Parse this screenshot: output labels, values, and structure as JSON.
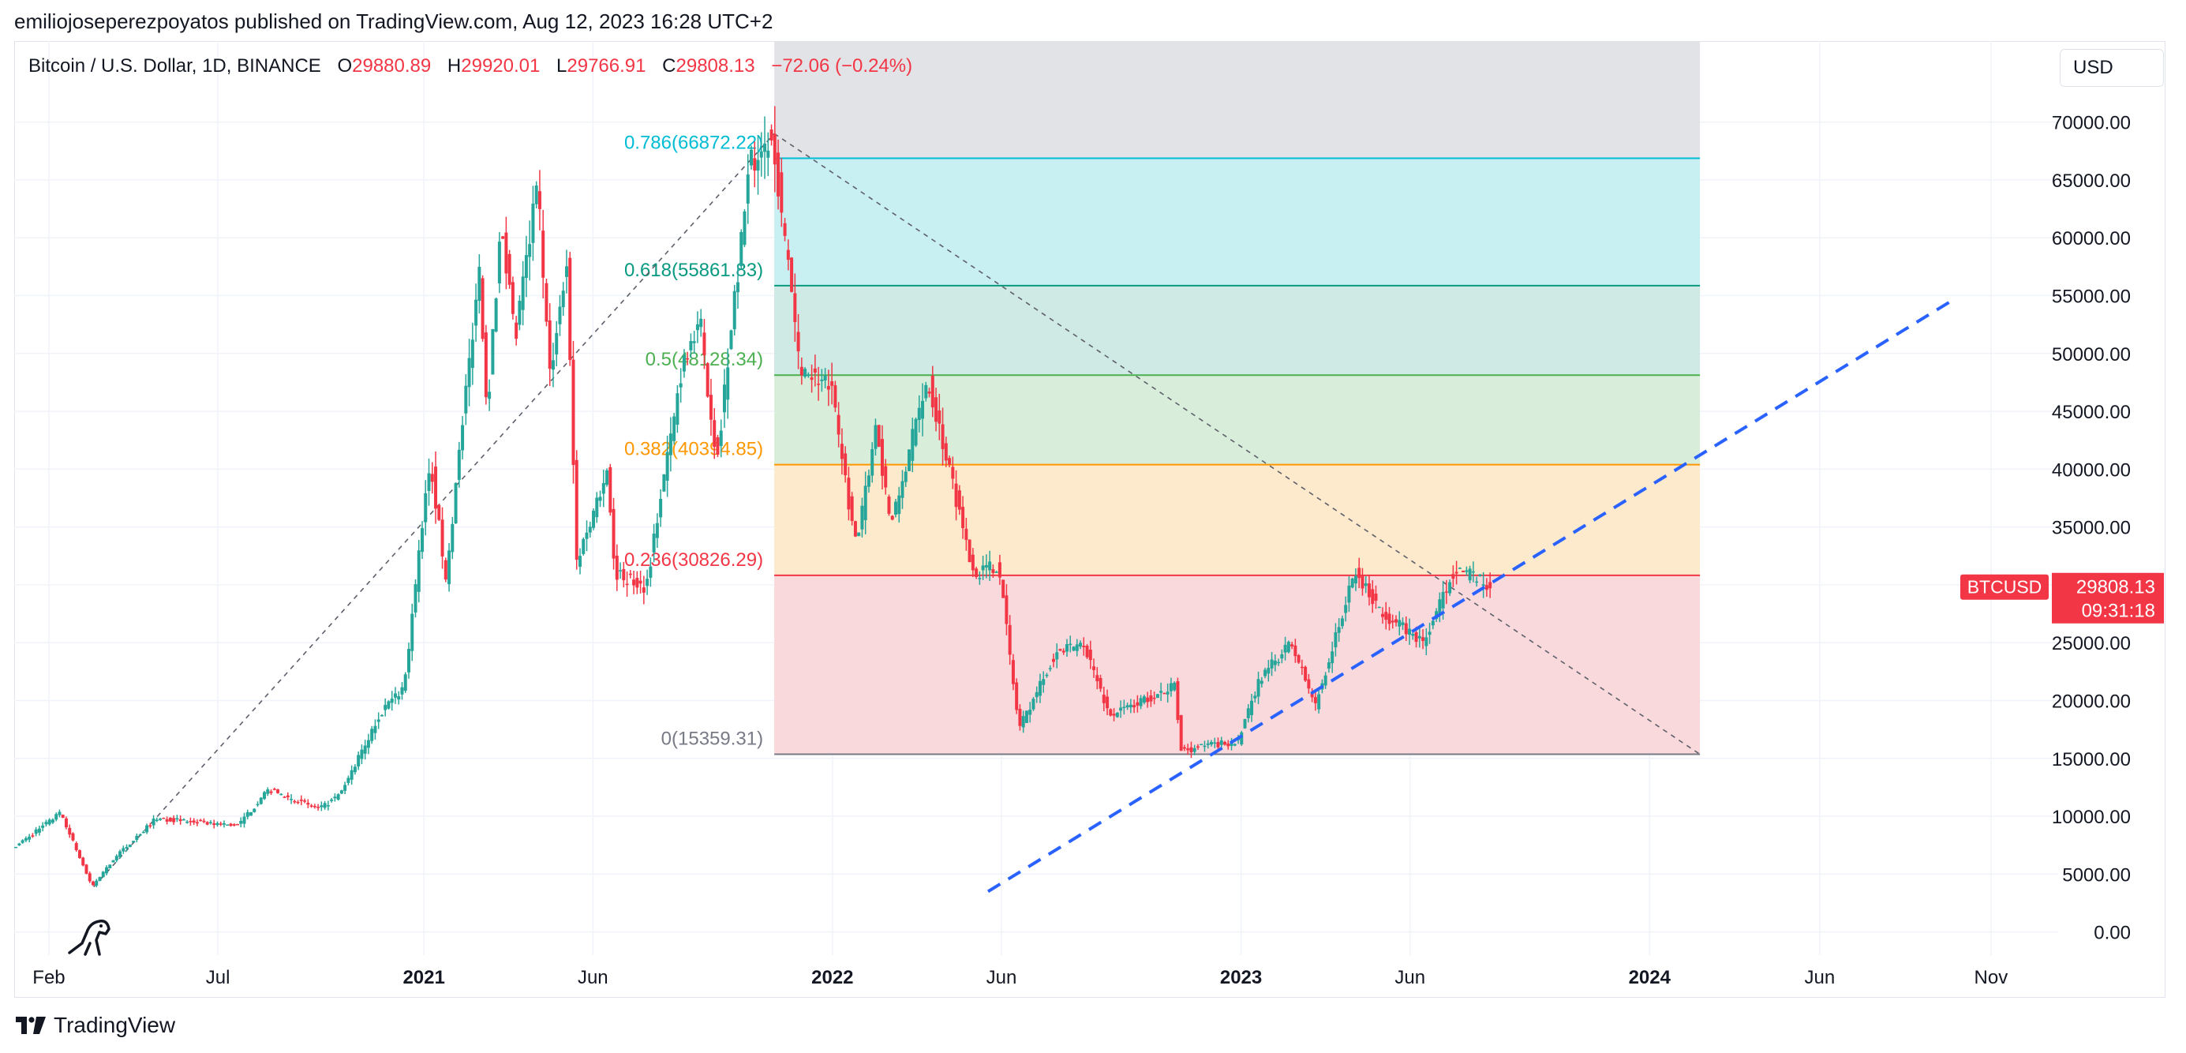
{
  "header": {
    "publisher_line": "emiliojoseperezpoyatos published on TradingView.com, Aug 12, 2023 16:28 UTC+2"
  },
  "legend": {
    "symbol": "Bitcoin / U.S. Dollar, 1D, BINANCE",
    "open_key": "O",
    "open": "29880.89",
    "high_key": "H",
    "high": "29920.01",
    "low_key": "L",
    "low": "29766.91",
    "close_key": "C",
    "close": "29808.13",
    "change": "−72.06 (−0.24%)"
  },
  "currency_button": "USD",
  "footer": {
    "brand": "TradingView",
    "logo_icon": "tradingview-logo-icon"
  },
  "watermark_icon": "dino-icon",
  "colors": {
    "up": "#26a69a",
    "down": "#f23645",
    "trendline": "#2962ff",
    "fib_0": "#787b86",
    "fib_0236": "#f23645",
    "fib_0382": "#ff9800",
    "fib_05": "#4caf50",
    "fib_0618": "#089981",
    "fib_0786": "#00bcd4"
  },
  "chart_data": {
    "type": "candlestick",
    "symbol": "BTCUSD",
    "x_range": [
      "2020-01-01",
      "2024-12-31"
    ],
    "y_range": [
      -2000,
      77000
    ],
    "y_ticks": [
      0,
      5000,
      10000,
      15000,
      20000,
      25000,
      30000,
      35000,
      40000,
      45000,
      50000,
      55000,
      60000,
      65000,
      70000
    ],
    "y_tick_labels": [
      "0.00",
      "5000.00",
      "10000.00",
      "15000.00",
      "20000.00",
      "25000.00",
      "30000.00",
      "35000.00",
      "40000.00",
      "45000.00",
      "50000.00",
      "55000.00",
      "60000.00",
      "65000.00",
      "70000.00"
    ],
    "x_ticks": [
      {
        "date": "2020-02-01",
        "label": "Feb",
        "bold": false
      },
      {
        "date": "2020-07-01",
        "label": "Jul",
        "bold": false
      },
      {
        "date": "2021-01-01",
        "label": "2021",
        "bold": true
      },
      {
        "date": "2021-06-01",
        "label": "Jun",
        "bold": false
      },
      {
        "date": "2022-01-01",
        "label": "2022",
        "bold": true
      },
      {
        "date": "2022-06-01",
        "label": "Jun",
        "bold": false
      },
      {
        "date": "2023-01-01",
        "label": "2023",
        "bold": true
      },
      {
        "date": "2023-06-01",
        "label": "Jun",
        "bold": false
      },
      {
        "date": "2024-01-01",
        "label": "2024",
        "bold": true
      },
      {
        "date": "2024-06-01",
        "label": "Jun",
        "bold": false
      },
      {
        "date": "2024-11-01",
        "label": "Nov",
        "bold": false
      }
    ],
    "price_path": [
      [
        "2020-01-01",
        7200
      ],
      [
        "2020-02-13",
        10300
      ],
      [
        "2020-03-12",
        3900
      ],
      [
        "2020-04-01",
        6400
      ],
      [
        "2020-05-08",
        9800
      ],
      [
        "2020-07-20",
        9200
      ],
      [
        "2020-08-17",
        12300
      ],
      [
        "2020-10-01",
        10600
      ],
      [
        "2020-10-20",
        11900
      ],
      [
        "2020-11-25",
        19000
      ],
      [
        "2020-12-16",
        21300
      ],
      [
        "2021-01-08",
        41000
      ],
      [
        "2021-01-22",
        30500
      ],
      [
        "2021-02-21",
        57500
      ],
      [
        "2021-02-28",
        45000
      ],
      [
        "2021-03-13",
        61500
      ],
      [
        "2021-03-25",
        51000
      ],
      [
        "2021-04-14",
        64800
      ],
      [
        "2021-04-25",
        48000
      ],
      [
        "2021-05-10",
        58000
      ],
      [
        "2021-05-19",
        32000
      ],
      [
        "2021-06-15",
        40000
      ],
      [
        "2021-06-22",
        31000
      ],
      [
        "2021-07-20",
        29800
      ],
      [
        "2021-08-23",
        50000
      ],
      [
        "2021-09-07",
        52000
      ],
      [
        "2021-09-21",
        40700
      ],
      [
        "2021-10-20",
        66000
      ],
      [
        "2021-11-10",
        69000
      ],
      [
        "2021-12-04",
        49000
      ],
      [
        "2022-01-01",
        47000
      ],
      [
        "2022-01-24",
        33000
      ],
      [
        "2022-02-10",
        44000
      ],
      [
        "2022-02-24",
        35000
      ],
      [
        "2022-03-28",
        48000
      ],
      [
        "2022-05-09",
        31000
      ],
      [
        "2022-05-31",
        31800
      ],
      [
        "2022-06-18",
        17600
      ],
      [
        "2022-07-20",
        24000
      ],
      [
        "2022-08-15",
        25000
      ],
      [
        "2022-09-07",
        18700
      ],
      [
        "2022-11-05",
        21300
      ],
      [
        "2022-11-09",
        15700
      ],
      [
        "2022-12-31",
        16500
      ],
      [
        "2023-01-20",
        22000
      ],
      [
        "2023-02-16",
        25000
      ],
      [
        "2023-03-10",
        19600
      ],
      [
        "2023-04-14",
        31000
      ],
      [
        "2023-05-10",
        27500
      ],
      [
        "2023-06-15",
        25000
      ],
      [
        "2023-07-13",
        31600
      ],
      [
        "2023-08-12",
        29808
      ]
    ],
    "last_price": {
      "label": "BTCUSD",
      "price": "29808.13",
      "countdown": "09:31:18",
      "value": 29808.13
    },
    "fibonacci": {
      "start_date": "2021-11-10",
      "end_date": "2024-02-15",
      "levels": [
        {
          "ratio": "0.786",
          "value": 66872.22,
          "label": "0.786(66872.22)"
        },
        {
          "ratio": "0.618",
          "value": 55861.83,
          "label": "0.618(55861.83)"
        },
        {
          "ratio": "0.5",
          "value": 48128.34,
          "label": "0.5(48128.34)"
        },
        {
          "ratio": "0.382",
          "value": 40394.85,
          "label": "0.382(40394.85)"
        },
        {
          "ratio": "0.236",
          "value": 30826.29,
          "label": "0.236(30826.29)"
        },
        {
          "ratio": "0",
          "value": 15359.31,
          "label": "0(15359.31)"
        }
      ],
      "top_value": 77000
    },
    "dashed_lines": [
      {
        "name": "rise-line",
        "from": [
          "2020-03-12",
          3900
        ],
        "to": [
          "2021-11-10",
          69000
        ],
        "style": "gray-dashed"
      },
      {
        "name": "fib-diagonal",
        "from": [
          "2021-11-10",
          69000
        ],
        "to": [
          "2024-02-15",
          15359
        ],
        "style": "gray-dashed"
      },
      {
        "name": "support-trendline",
        "from": [
          "2022-05-20",
          3500
        ],
        "to": [
          "2024-10-01",
          54800
        ],
        "style": "blue-dashed"
      }
    ]
  }
}
